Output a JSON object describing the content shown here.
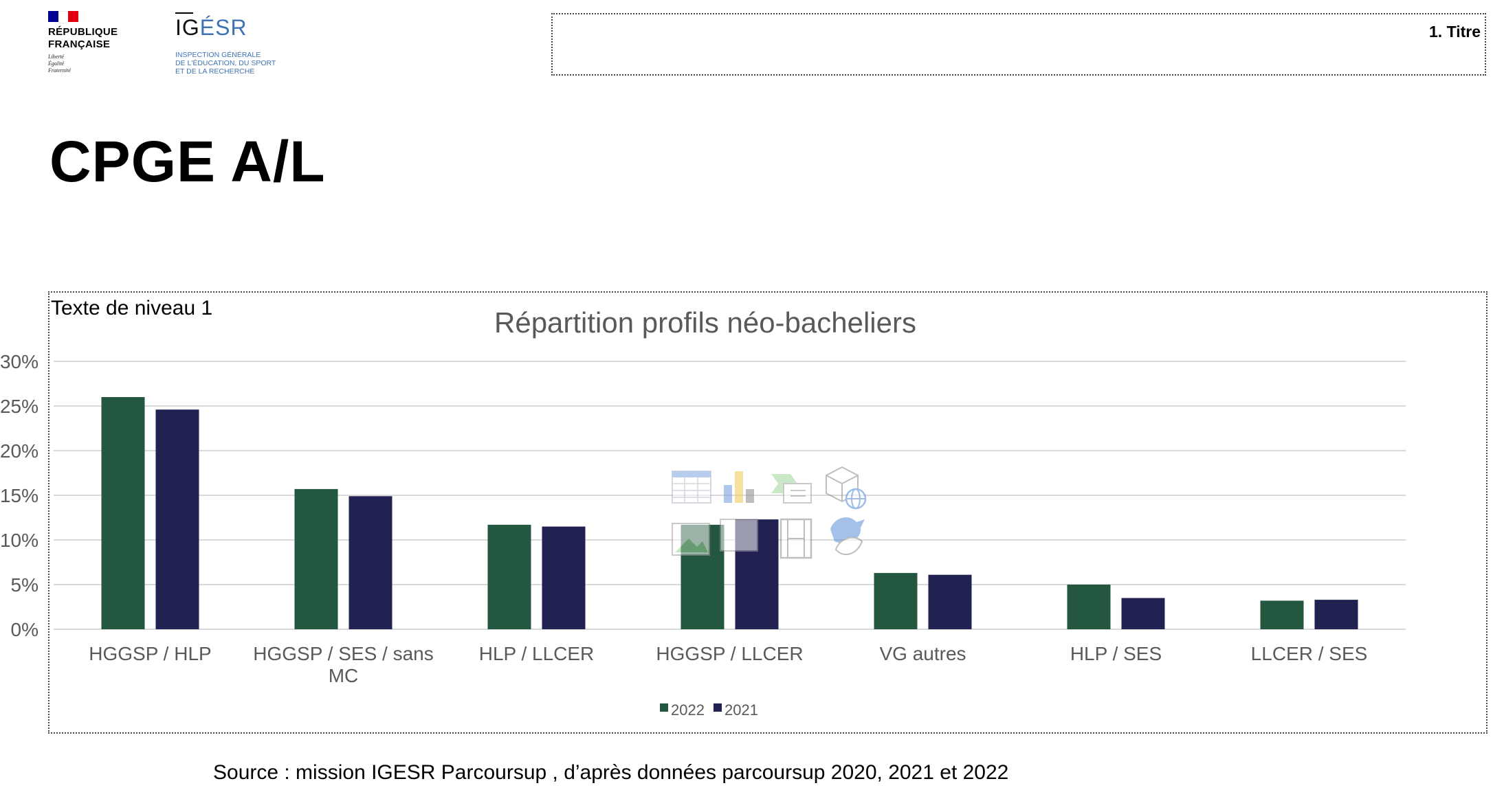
{
  "header": {
    "rf_logo": {
      "lines": [
        "RÉPUBLIQUE",
        "FRANÇAISE"
      ],
      "motto": [
        "Liberté",
        "Égalité",
        "Fraternité"
      ]
    },
    "igesr_logo": {
      "name_part1": "IG",
      "name_part2": "ÉSR",
      "subtitle_lines": [
        "INSPECTION GÉNÉRALE",
        "DE L'ÉDUCATION, DU SPORT",
        "ET DE LA RECHERCHE"
      ]
    },
    "title_placeholder": "1. Titre"
  },
  "page_title": "CPGE A/L",
  "content_label": "Texte de niveau 1",
  "source": "Source : mission IGESR Parcoursup , d’après données parcoursup 2020, 2021 et 2022",
  "colors": {
    "series_2022": "#23573f",
    "series_2021": "#212152",
    "grid": "#d9d9d9",
    "title": "#595959",
    "axis_text": "#595959"
  },
  "icons": [
    "table-icon",
    "bar-chart-icon",
    "smartart-icon",
    "3d-model-icon",
    "picture-icon",
    "video-icon",
    "icons-insert-icon"
  ],
  "chart_data": {
    "type": "bar",
    "title": "Répartition profils néo-bacheliers",
    "categories": [
      [
        "HGGSP / HLP"
      ],
      [
        "HGGSP / SES / sans",
        "MC"
      ],
      [
        "HLP / LLCER"
      ],
      [
        "HGGSP / LLCER"
      ],
      [
        "VG autres"
      ],
      [
        "HLP / SES"
      ],
      [
        "LLCER / SES"
      ]
    ],
    "series": [
      {
        "name": "2022",
        "values": [
          0.26,
          0.157,
          0.117,
          0.117,
          0.063,
          0.05,
          0.032
        ]
      },
      {
        "name": "2021",
        "values": [
          0.246,
          0.149,
          0.115,
          0.123,
          0.061,
          0.035,
          0.033
        ]
      }
    ],
    "ylim": [
      0,
      0.3
    ],
    "yticks": [
      "0%",
      "5%",
      "10%",
      "15%",
      "20%",
      "25%",
      "30%"
    ],
    "grid": true,
    "legend": "bottom"
  }
}
